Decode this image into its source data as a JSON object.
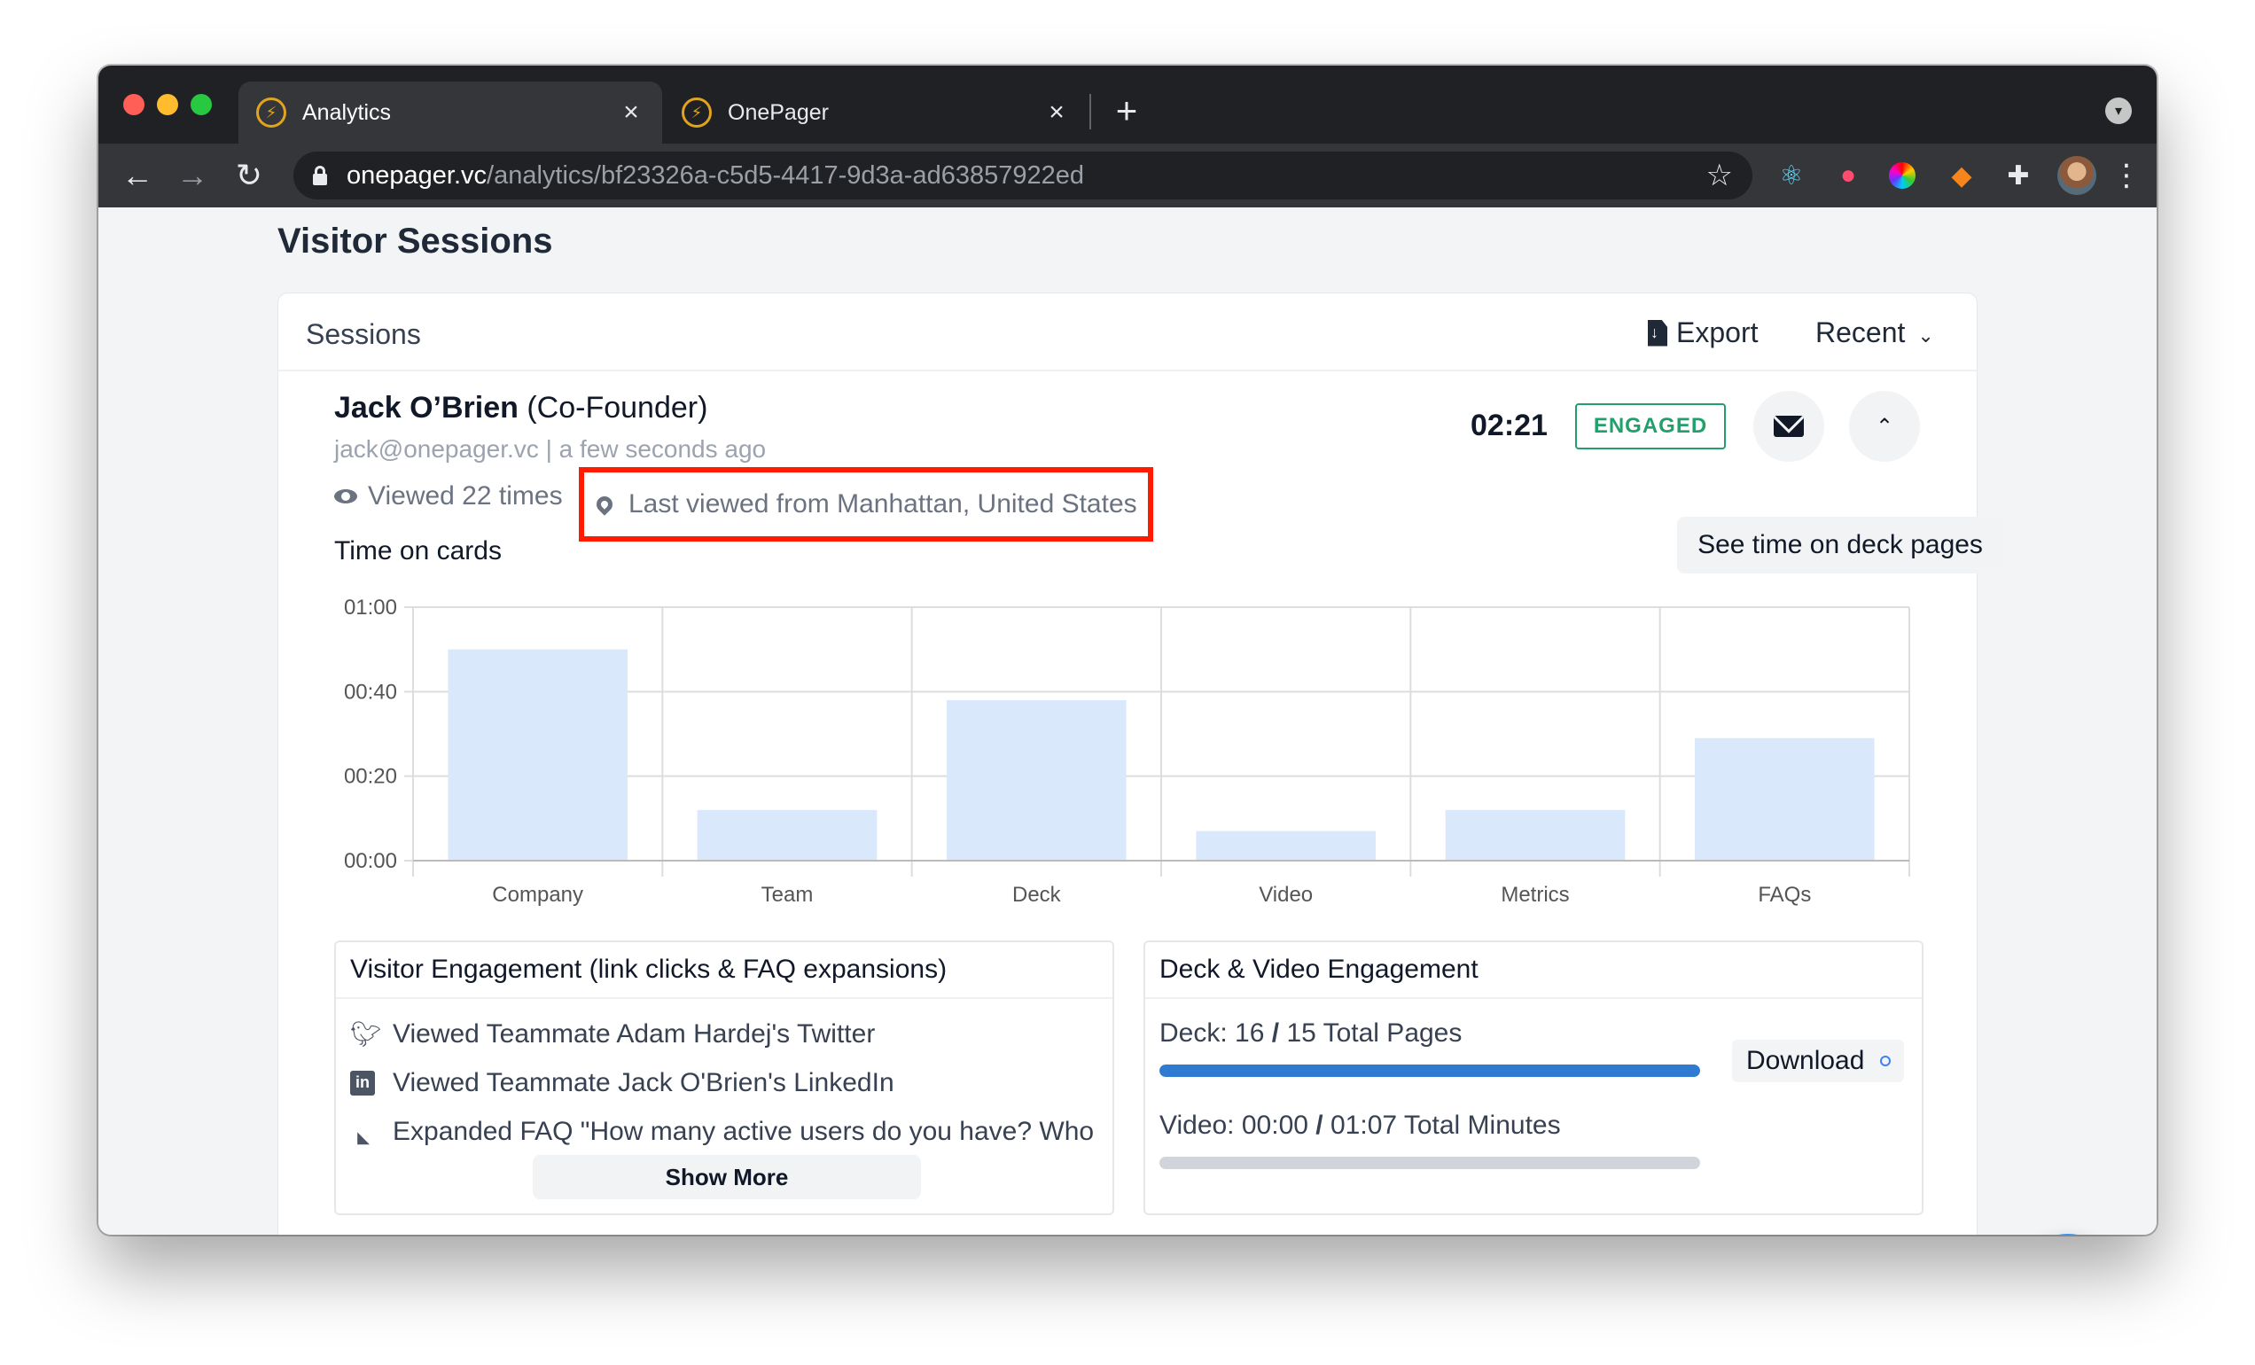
{
  "browser": {
    "tabs": [
      {
        "title": "Analytics",
        "active": true
      },
      {
        "title": "OnePager",
        "active": false
      }
    ],
    "url_host": "onepager.vc",
    "url_path": "/analytics/bf23326a-c5d5-4417-9d3a-ad63857922ed"
  },
  "page": {
    "title": "Visitor Sessions",
    "sessions_label": "Sessions",
    "export_label": "Export",
    "sort_label": "Recent"
  },
  "visitor": {
    "name": "Jack O’Brien",
    "role": "(Co-Founder)",
    "email": "jack@onepager.vc",
    "separator": "|",
    "last_seen": "a few seconds ago",
    "duration": "02:21",
    "status_badge": "ENGAGED",
    "views": "Viewed 22 times",
    "location": "Last viewed from Manhattan, United States",
    "time_on_cards_label": "Time on cards",
    "see_time_label": "See time on deck pages"
  },
  "chart_data": {
    "type": "bar",
    "title": "Time on cards",
    "categories": [
      "Company",
      "Team",
      "Deck",
      "Video",
      "Metrics",
      "FAQs"
    ],
    "values_seconds": [
      50,
      12,
      38,
      7,
      12,
      29
    ],
    "y_ticks": [
      "00:00",
      "00:20",
      "00:40",
      "01:00"
    ],
    "ylim_seconds": [
      0,
      60
    ],
    "bar_color": "#d9e8fb",
    "grid": true
  },
  "visitor_engagement": {
    "title": "Visitor Engagement (link clicks & FAQ expansions)",
    "items": [
      {
        "icon": "twitter-icon",
        "text": "Viewed Teammate Adam Hardej's Twitter"
      },
      {
        "icon": "linkedin-icon",
        "text": "Viewed Teammate Jack O'Brien's LinkedIn"
      },
      {
        "icon": "expand-triangle-icon",
        "text": "Expanded FAQ \"How many active users do you have? Who"
      }
    ],
    "show_more_label": "Show More"
  },
  "deck_video": {
    "title": "Deck & Video Engagement",
    "deck_prefix": "Deck:",
    "deck_value": "16",
    "deck_sep": "/",
    "deck_total": "15 Total Pages",
    "deck_progress": 1.0,
    "video_prefix": "Video:",
    "video_value": "00:00",
    "video_sep": "/",
    "video_total": "01:07 Total Minutes",
    "video_progress": 0.0,
    "download_label": "Download"
  },
  "colors": {
    "accent": "#2f7bd1",
    "engaged": "#22a06b",
    "highlight_box": "#ff1a00",
    "chat": "#3b8fe6"
  }
}
